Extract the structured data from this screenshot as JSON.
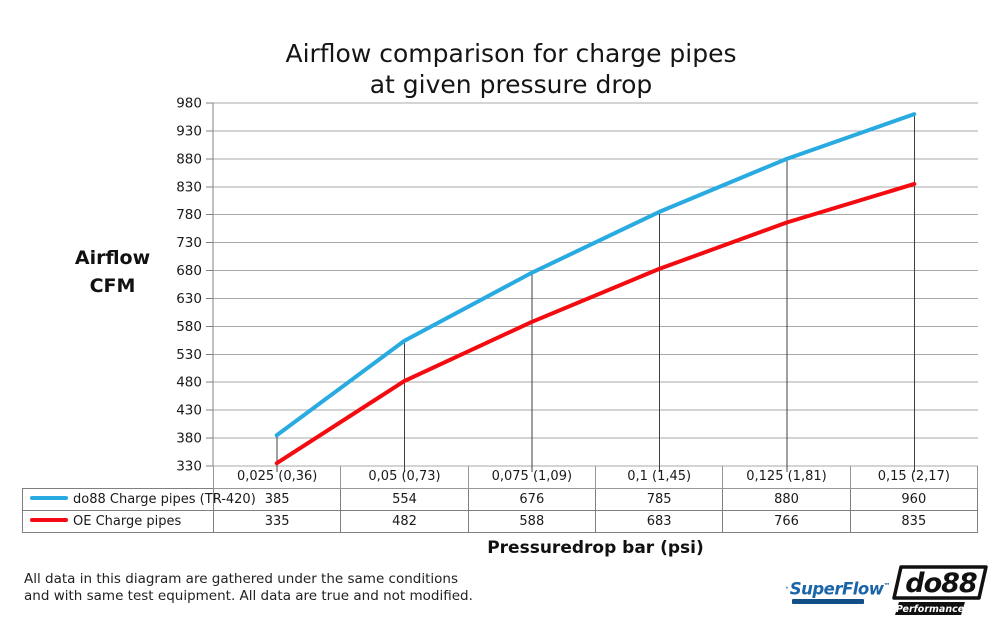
{
  "title": {
    "line1": "Airflow comparison for charge pipes",
    "line2": "at given pressure drop"
  },
  "y_axis_label": {
    "line1": "Airflow",
    "line2": "CFM"
  },
  "x_axis_label": "Pressuredrop bar (psi)",
  "footer_note": {
    "line1": "All data in this diagram are gathered under the same conditions",
    "line2": "and with same test equipment. All data are true and not modified."
  },
  "logos": {
    "superflow": {
      "name": "SuperFlow",
      "trademark": "™",
      "color": "#1A64A8"
    },
    "do88": {
      "name": "do88",
      "tagline": "Performance",
      "color": "#111111"
    }
  },
  "chart_data": {
    "type": "line",
    "title": "Airflow comparison for charge pipes at given pressure drop",
    "xlabel": "Pressuredrop bar (psi)",
    "ylabel": "Airflow CFM",
    "categories": [
      "0,025 (0,36)",
      "0,05 (0,73)",
      "0,075 (1,09)",
      "0,1 (1,45)",
      "0,125 (1,81)",
      "0,15 (2,17)"
    ],
    "series": [
      {
        "name": "do88 Charge pipes (TR-420)",
        "color": "#29ABE2",
        "values": [
          385,
          554,
          676,
          785,
          880,
          960
        ]
      },
      {
        "name": "OE Charge pipes",
        "color": "#F40B0F",
        "values": [
          335,
          482,
          588,
          683,
          766,
          835
        ]
      }
    ],
    "ylim": [
      330,
      980
    ],
    "ytick_step": 50,
    "grid": true,
    "droplines": true,
    "legend_position": "table-left",
    "grid_color": "#A8A8A8",
    "axis_color": "#808080",
    "dropline_color": "#404040"
  }
}
